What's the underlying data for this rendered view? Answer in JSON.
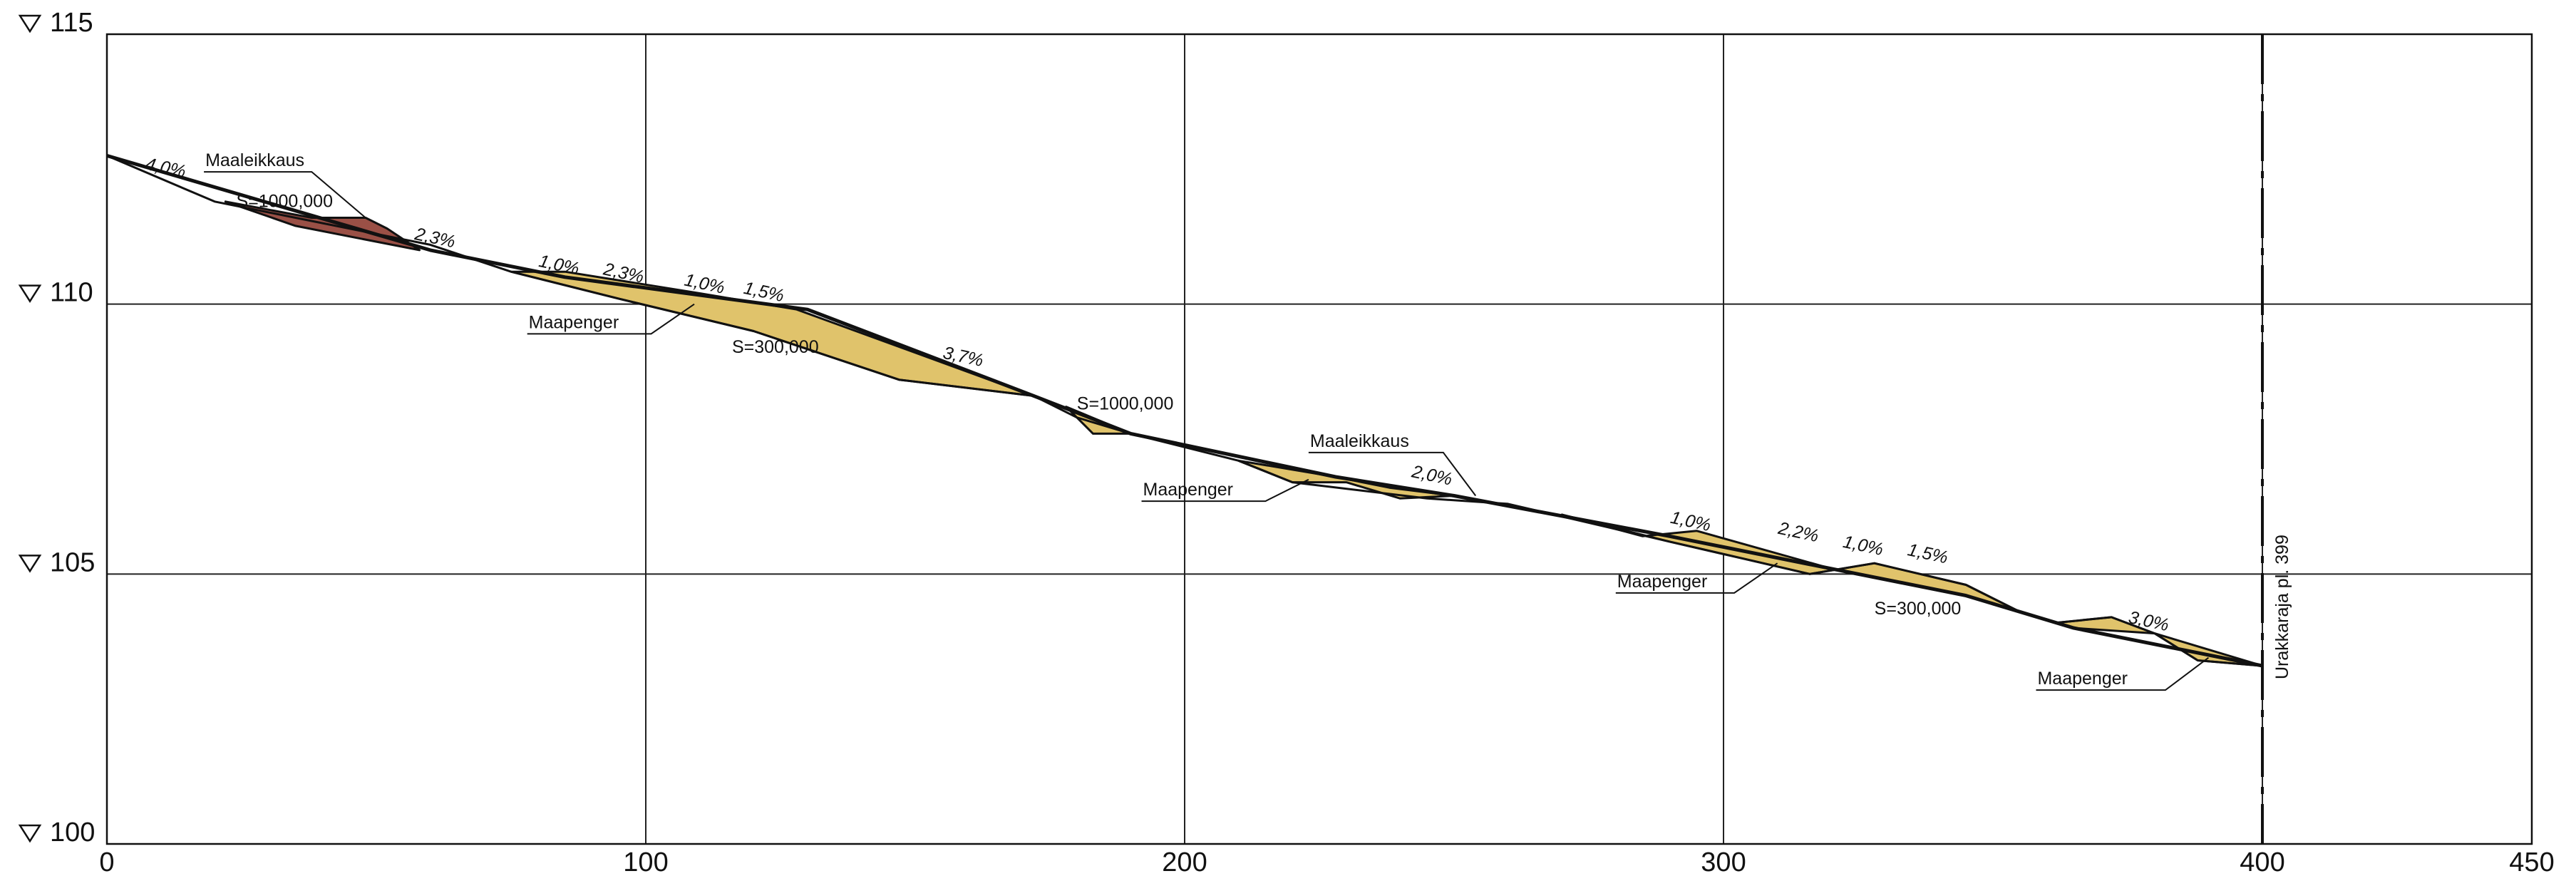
{
  "chart_data": {
    "type": "line",
    "title": "",
    "xlabel": "",
    "ylabel": "",
    "xlim": [
      0,
      450
    ],
    "ylim": [
      100,
      115
    ],
    "x_ticks": [
      "0",
      "100",
      "200",
      "300",
      "400",
      "450"
    ],
    "y_ticks": [
      {
        "value": 100,
        "label": "100"
      },
      {
        "value": 105,
        "label": "105"
      },
      {
        "value": 110,
        "label": "110"
      },
      {
        "value": 115,
        "label": "115"
      }
    ],
    "grid": true,
    "series": [
      {
        "id": "design",
        "points": [
          [
            0,
            112.75
          ],
          [
            60,
            111.0
          ],
          [
            85,
            110.5
          ],
          [
            130,
            109.9
          ],
          [
            172,
            108.3
          ],
          [
            190,
            107.6
          ],
          [
            228,
            106.8
          ],
          [
            250,
            106.45
          ],
          [
            290,
            105.7
          ],
          [
            320,
            105.1
          ],
          [
            345,
            104.6
          ],
          [
            365,
            104.0
          ],
          [
            400,
            103.3
          ]
        ]
      },
      {
        "id": "ground",
        "points": [
          [
            0,
            112.75
          ],
          [
            20,
            111.9
          ],
          [
            35,
            111.6
          ],
          [
            60,
            111.1
          ],
          [
            75,
            110.6
          ],
          [
            95,
            110.1
          ],
          [
            120,
            109.5
          ],
          [
            147,
            108.6
          ],
          [
            172,
            108.3
          ],
          [
            180,
            107.9
          ],
          [
            190,
            107.6
          ],
          [
            210,
            107.1
          ],
          [
            220,
            106.7
          ],
          [
            245,
            106.4
          ],
          [
            260,
            106.3
          ],
          [
            290,
            105.6
          ],
          [
            303,
            105.3
          ],
          [
            316,
            105.0
          ],
          [
            328,
            105.2
          ],
          [
            345,
            104.8
          ],
          [
            355,
            104.3
          ],
          [
            362,
            104.1
          ],
          [
            372,
            104.2
          ],
          [
            380,
            103.9
          ],
          [
            388,
            103.4
          ],
          [
            400,
            103.3
          ]
        ]
      }
    ],
    "fills": [
      {
        "kind": "cut",
        "color": "#9a5046",
        "points": [
          [
            22,
            111.9
          ],
          [
            38,
            111.6
          ],
          [
            48,
            111.6
          ],
          [
            52,
            111.4
          ],
          [
            58,
            111.0
          ],
          [
            35,
            111.45
          ]
        ]
      },
      {
        "kind": "fill",
        "color": "#e0c36b",
        "points": [
          [
            75,
            110.6
          ],
          [
            85,
            110.6
          ],
          [
            110,
            110.2
          ],
          [
            128,
            109.9
          ],
          [
            172,
            108.3
          ],
          [
            147,
            108.6
          ],
          [
            120,
            109.5
          ],
          [
            95,
            110.1
          ]
        ]
      },
      {
        "kind": "fill",
        "color": "#e0c36b",
        "points": [
          [
            178,
            108.1
          ],
          [
            190,
            107.6
          ],
          [
            183,
            107.6
          ],
          [
            180,
            107.9
          ]
        ]
      },
      {
        "kind": "fill",
        "color": "#e0c36b",
        "points": [
          [
            210,
            107.1
          ],
          [
            228,
            106.8
          ],
          [
            238,
            106.6
          ],
          [
            250,
            106.45
          ],
          [
            240,
            106.4
          ],
          [
            230,
            106.7
          ],
          [
            220,
            106.7
          ]
        ]
      },
      {
        "kind": "fill",
        "color": "#e0c36b",
        "points": [
          [
            270,
            106.1
          ],
          [
            285,
            105.7
          ],
          [
            295,
            105.8
          ],
          [
            320,
            105.1
          ],
          [
            345,
            104.6
          ],
          [
            365,
            104.0
          ],
          [
            380,
            103.9
          ],
          [
            400,
            103.3
          ],
          [
            388,
            103.4
          ],
          [
            380,
            103.9
          ],
          [
            372,
            104.2
          ],
          [
            362,
            104.1
          ],
          [
            355,
            104.3
          ],
          [
            345,
            104.8
          ],
          [
            328,
            105.2
          ],
          [
            316,
            105.0
          ],
          [
            303,
            105.3
          ],
          [
            290,
            105.6
          ]
        ]
      }
    ],
    "annotations": [
      {
        "text": "4,0%",
        "x": 7,
        "y": 112.5,
        "kind": "slope"
      },
      {
        "text": "2,3%",
        "x": 57,
        "y": 111.2,
        "kind": "slope"
      },
      {
        "text": "1,0%",
        "x": 80,
        "y": 110.7,
        "kind": "slope"
      },
      {
        "text": "2,3%",
        "x": 92,
        "y": 110.55,
        "kind": "slope"
      },
      {
        "text": "1,0%",
        "x": 107,
        "y": 110.35,
        "kind": "slope"
      },
      {
        "text": "1,5%",
        "x": 118,
        "y": 110.2,
        "kind": "slope"
      },
      {
        "text": "3,7%",
        "x": 155,
        "y": 109.0,
        "kind": "slope"
      },
      {
        "text": "2,0%",
        "x": 242,
        "y": 106.8,
        "kind": "slope"
      },
      {
        "text": "1,0%",
        "x": 290,
        "y": 105.95,
        "kind": "slope"
      },
      {
        "text": "2,2%",
        "x": 310,
        "y": 105.75,
        "kind": "slope"
      },
      {
        "text": "1,0%",
        "x": 322,
        "y": 105.5,
        "kind": "slope"
      },
      {
        "text": "1,5%",
        "x": 334,
        "y": 105.35,
        "kind": "slope"
      },
      {
        "text": "3,0%",
        "x": 375,
        "y": 104.1,
        "kind": "slope"
      },
      {
        "text": "S=1000,000",
        "x": 24,
        "y": 111.8,
        "kind": "label"
      },
      {
        "text": "S=300,000",
        "x": 116,
        "y": 109.1,
        "kind": "label"
      },
      {
        "text": "S=1000,000",
        "x": 180,
        "y": 108.05,
        "kind": "label"
      },
      {
        "text": "S=300,000",
        "x": 328,
        "y": 104.25,
        "kind": "label"
      }
    ],
    "leaders": [
      {
        "text": "Maaleikkaus",
        "label_x": 18,
        "label_y": 112.45,
        "shelf_to_x": 38,
        "target": [
          48,
          111.6
        ]
      },
      {
        "text": "Maapenger",
        "label_x": 78,
        "label_y": 109.45,
        "shelf_to_x": 101,
        "target": [
          109,
          110.0
        ]
      },
      {
        "text": "Maaleikkaus",
        "label_x": 223,
        "label_y": 107.25,
        "shelf_to_x": 248,
        "target": [
          254,
          106.45
        ]
      },
      {
        "text": "Maapenger",
        "label_x": 192,
        "label_y": 106.35,
        "shelf_to_x": 215,
        "target": [
          223,
          106.75
        ]
      },
      {
        "text": "Maapenger",
        "label_x": 280,
        "label_y": 104.65,
        "shelf_to_x": 302,
        "target": [
          310,
          105.2
        ]
      },
      {
        "text": "Maapenger",
        "label_x": 358,
        "label_y": 102.85,
        "shelf_to_x": 382,
        "target": [
          390,
          103.45
        ]
      }
    ],
    "boundary": {
      "x": 400,
      "label": "Urakkaraja pl. 399"
    }
  }
}
